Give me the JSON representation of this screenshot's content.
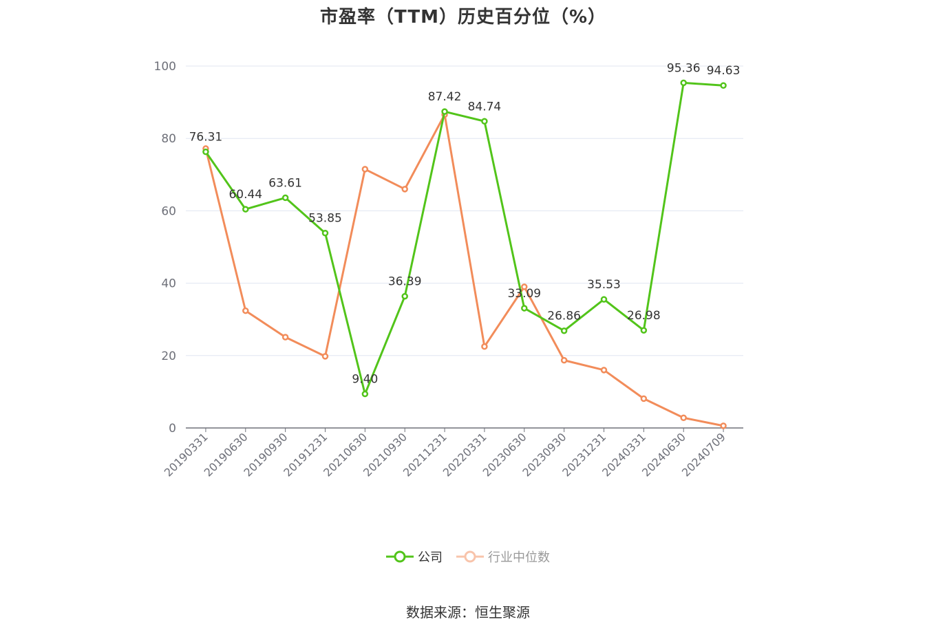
{
  "source_text": "数据来源：恒生聚源",
  "chart_data": {
    "type": "line",
    "title": "市盈率（TTM）历史百分位（%）",
    "xlabel": "",
    "ylabel": "",
    "ylim": [
      0,
      100
    ],
    "yticks": [
      0,
      20,
      40,
      60,
      80,
      100
    ],
    "grid": true,
    "legend_position": "bottom",
    "categories": [
      "20190331",
      "20190630",
      "20190930",
      "20191231",
      "20210630",
      "20210930",
      "20211231",
      "20220331",
      "20230630",
      "20230930",
      "20231231",
      "20240331",
      "20240630",
      "20240709"
    ],
    "series": [
      {
        "name": "公司",
        "color": "#52c41a",
        "values": [
          76.31,
          60.44,
          63.61,
          53.85,
          9.4,
          36.39,
          87.42,
          84.74,
          33.09,
          26.86,
          35.53,
          26.98,
          95.36,
          94.63
        ],
        "labels": [
          "76.31",
          "60.44",
          "63.61",
          "53.85",
          "9.40",
          "36.39",
          "87.42",
          "84.74",
          "33.09",
          "26.86",
          "35.53",
          "26.98",
          "95.36",
          "94.63"
        ]
      },
      {
        "name": "行业中位数",
        "color": "#f28c5a",
        "values": [
          77.2,
          32.4,
          25.1,
          19.8,
          71.5,
          66.0,
          86.6,
          22.5,
          39.0,
          18.7,
          16.0,
          8.1,
          2.8,
          0.6
        ]
      }
    ]
  }
}
